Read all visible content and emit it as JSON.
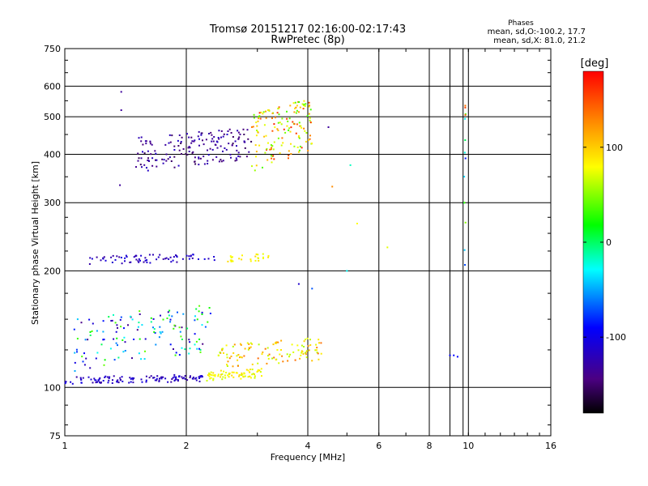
{
  "chart_data": {
    "type": "scatter",
    "title": "Tromsø 20151217 02:16:00-02:17:43",
    "subtitle": "RwPretec (8p)",
    "xlabel": "Frequency [MHz]",
    "ylabel": "Stationary phase Virtual Height [km]",
    "x_scale": "log",
    "y_scale": "log",
    "xlim": [
      1,
      16
    ],
    "ylim": [
      75,
      750
    ],
    "x_ticks": [
      1,
      2,
      4,
      6,
      8,
      10,
      16
    ],
    "y_ticks": [
      75,
      100,
      200,
      300,
      400,
      500,
      600,
      750
    ],
    "grid": true,
    "phases_header": "Phases",
    "stats_o": "mean, sd,O:-100.2, 17.7",
    "stats_x": "mean, sd,X:  81.0, 21.2",
    "colorbar": {
      "label": "[deg]",
      "range": [
        -180,
        180
      ],
      "ticks": [
        100,
        0,
        -100
      ]
    },
    "clusters": [
      {
        "name": "E-layer trace",
        "x_range": [
          1.0,
          2.2
        ],
        "y_range": [
          102,
          108
        ],
        "phase_range": [
          -140,
          -110
        ],
        "count": 120
      },
      {
        "name": "Es O scatter",
        "x_range": [
          1.05,
          2.3
        ],
        "y_range": [
          110,
          165
        ],
        "phase_range": [
          -150,
          40
        ],
        "count": 140
      },
      {
        "name": "Es X trace",
        "x_range": [
          2.25,
          3.1
        ],
        "y_range": [
          104,
          112
        ],
        "phase_range": [
          70,
          110
        ],
        "count": 70
      },
      {
        "name": "Es X scatter",
        "x_range": [
          2.4,
          4.4
        ],
        "y_range": [
          112,
          135
        ],
        "phase_range": [
          60,
          150
        ],
        "count": 110
      },
      {
        "name": "E2 trace O",
        "x_range": [
          1.15,
          2.35
        ],
        "y_range": [
          208,
          222
        ],
        "phase_range": [
          -140,
          -110
        ],
        "count": 70
      },
      {
        "name": "E2 trace X",
        "x_range": [
          2.5,
          3.2
        ],
        "y_range": [
          210,
          222
        ],
        "phase_range": [
          80,
          110
        ],
        "count": 25
      },
      {
        "name": "F-layer O",
        "x_range": [
          1.5,
          2.9
        ],
        "y_range": [
          360,
          470
        ],
        "phase_range": [
          -160,
          -120
        ],
        "count": 170
      },
      {
        "name": "F-layer X",
        "x_range": [
          2.9,
          4.1
        ],
        "y_range": [
          360,
          560
        ],
        "phase_range": [
          20,
          170
        ],
        "count": 150
      },
      {
        "name": "vertical streak 9.8 MHz",
        "x_range": [
          9.75,
          9.85
        ],
        "y_range": [
          118,
          580
        ],
        "phase_range": [
          -120,
          170
        ],
        "count": 14
      }
    ],
    "sparse_points": [
      {
        "x": 1.38,
        "y": 580,
        "phase": -140
      },
      {
        "x": 1.38,
        "y": 520,
        "phase": -140
      },
      {
        "x": 1.37,
        "y": 333,
        "phase": -140
      },
      {
        "x": 4.5,
        "y": 470,
        "phase": -140
      },
      {
        "x": 4.6,
        "y": 330,
        "phase": 140
      },
      {
        "x": 5.1,
        "y": 375,
        "phase": -30
      },
      {
        "x": 5.3,
        "y": 265,
        "phase": 90
      },
      {
        "x": 6.3,
        "y": 230,
        "phase": 80
      },
      {
        "x": 5.0,
        "y": 200,
        "phase": -40
      },
      {
        "x": 4.1,
        "y": 180,
        "phase": -80
      },
      {
        "x": 3.8,
        "y": 185,
        "phase": -120
      },
      {
        "x": 9.0,
        "y": 121,
        "phase": -100
      },
      {
        "x": 9.2,
        "y": 121,
        "phase": -100
      },
      {
        "x": 9.4,
        "y": 120,
        "phase": -100
      }
    ]
  }
}
